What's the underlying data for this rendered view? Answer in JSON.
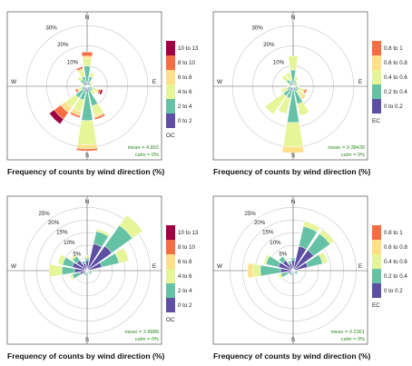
{
  "colors": {
    "bins": [
      "#5e4fa2",
      "#66c2a5",
      "#e6f598",
      "#fee08b",
      "#f46d43",
      "#9e0142"
    ],
    "stat_text": "#2e8b22",
    "ring": "#c8c8c8",
    "axis": "#555555"
  },
  "chart_data": [
    {
      "type": "wind-rose",
      "title": "Frequency of counts by wind direction (%)",
      "directions": [
        "N",
        "NNE",
        "NE",
        "ENE",
        "E",
        "ESE",
        "SE",
        "SSE",
        "S",
        "SSW",
        "SW",
        "WSW",
        "W",
        "WNW",
        "NW",
        "NNW"
      ],
      "compass_labels": [
        "N",
        "E",
        "S",
        "W"
      ],
      "ring_labels": [
        "10%",
        "20%",
        "30%"
      ],
      "ring_values": [
        10,
        20,
        30
      ],
      "legend_title": "OC",
      "legend_labels": [
        "0 to 2",
        "2 to 4",
        "4 to 6",
        "6 to 8",
        "8 to 10",
        "10 to 13"
      ],
      "stats": {
        "mean": "mean = 4.802",
        "calm": "calm = 0%"
      },
      "series": [
        {
          "name": "0 to 2",
          "values": [
            2,
            2,
            1,
            1,
            1,
            1,
            1,
            2,
            3,
            2,
            2,
            1,
            1,
            1,
            2,
            2
          ]
        },
        {
          "name": "2 to 4",
          "values": [
            8,
            3,
            1,
            1,
            1,
            2,
            2,
            8,
            14,
            5,
            5,
            2,
            1,
            1,
            2,
            3
          ]
        },
        {
          "name": "4 to 6",
          "values": [
            4,
            2,
            1,
            1,
            1,
            2,
            2,
            5,
            12,
            6,
            6,
            2,
            1,
            1,
            2,
            3
          ]
        },
        {
          "name": "6 to 8",
          "values": [
            1,
            0,
            0,
            0,
            0,
            1,
            0,
            1,
            2,
            2,
            3,
            0,
            0,
            0,
            0,
            1
          ]
        },
        {
          "name": "8 to 10",
          "values": [
            2,
            0,
            0,
            0,
            0,
            1,
            0,
            1,
            1,
            1,
            4,
            1,
            0,
            0,
            0,
            1
          ]
        },
        {
          "name": "10 to 13",
          "values": [
            0,
            0,
            0,
            0,
            0,
            1,
            0,
            0,
            0,
            0,
            3,
            0,
            0,
            0,
            0,
            0
          ]
        }
      ],
      "rmax": 35
    },
    {
      "type": "wind-rose",
      "title": "Frequency of counts by wind direction (%)",
      "directions": [
        "N",
        "NNE",
        "NE",
        "ENE",
        "E",
        "ESE",
        "SE",
        "SSE",
        "S",
        "SSW",
        "SW",
        "WSW",
        "W",
        "WNW",
        "NW",
        "NNW"
      ],
      "compass_labels": [
        "N",
        "E",
        "S",
        "W"
      ],
      "ring_labels": [
        "10%",
        "20%",
        "30%"
      ],
      "ring_values": [
        10,
        20,
        30
      ],
      "legend_title": "EC",
      "legend_labels": [
        "0 to 0.2",
        "0.2 to 0.4",
        "0.4 to 0.6",
        "0.6 to 0.8",
        "0.8 to 1"
      ],
      "stats": {
        "mean": "mean = 0.38439",
        "calm": "calm = 0%"
      },
      "series": [
        {
          "name": "0 to 0.2",
          "values": [
            2,
            1,
            1,
            1,
            1,
            1,
            1,
            2,
            2,
            2,
            2,
            1,
            1,
            1,
            2,
            1
          ]
        },
        {
          "name": "0.2 to 0.4",
          "values": [
            6,
            2,
            1,
            1,
            1,
            2,
            2,
            7,
            16,
            4,
            4,
            2,
            1,
            1,
            2,
            2
          ]
        },
        {
          "name": "0.4 to 0.6",
          "values": [
            7,
            2,
            1,
            1,
            1,
            2,
            3,
            6,
            12,
            8,
            11,
            3,
            1,
            1,
            3,
            4
          ]
        },
        {
          "name": "0.6 to 0.8",
          "values": [
            0,
            0,
            0,
            0,
            0,
            1,
            2,
            0,
            3,
            0,
            0,
            0,
            0,
            0,
            0,
            0
          ]
        },
        {
          "name": "0.8 to 1",
          "values": [
            0,
            0,
            0,
            0,
            0,
            1,
            0,
            0,
            0,
            0,
            0,
            0,
            0,
            0,
            0,
            0
          ]
        }
      ],
      "rmax": 35
    },
    {
      "type": "wind-rose",
      "title": "Frequency of counts by wind direction (%)",
      "directions": [
        "N",
        "NNE",
        "NE",
        "ENE",
        "E",
        "ESE",
        "SE",
        "SSE",
        "S",
        "SSW",
        "SW",
        "WSW",
        "W",
        "WNW",
        "NW",
        "NNW"
      ],
      "compass_labels": [
        "N",
        "E",
        "S",
        "W"
      ],
      "ring_labels": [
        "5%",
        "10%",
        "15%",
        "20%",
        "25%"
      ],
      "ring_values": [
        5,
        10,
        15,
        20,
        25
      ],
      "legend_title": "OC",
      "legend_labels": [
        "0 to 2",
        "2 to 4",
        "4 to 6",
        "6 to 8",
        "8 to 10",
        "10 to 13"
      ],
      "stats": {
        "mean": "mean = 2.8888",
        "calm": "calm = 0%"
      },
      "series": [
        {
          "name": "0 to 2",
          "values": [
            4,
            11,
            12,
            6,
            1,
            1,
            1,
            1,
            1,
            1,
            1,
            3,
            5,
            6,
            5,
            3
          ]
        },
        {
          "name": "2 to 4",
          "values": [
            1,
            5,
            10,
            7,
            1,
            1,
            1,
            0,
            0,
            1,
            1,
            3,
            5,
            4,
            2,
            1
          ]
        },
        {
          "name": "4 to 6",
          "values": [
            1,
            1,
            5,
            4,
            0,
            0,
            0,
            0,
            0,
            0,
            0,
            1,
            5,
            2,
            1,
            0
          ]
        },
        {
          "name": "6 to 8",
          "values": [
            0,
            0,
            0,
            0,
            0,
            0,
            0,
            0,
            0,
            0,
            0,
            0,
            0,
            0,
            0,
            0
          ]
        },
        {
          "name": "8 to 10",
          "values": [
            0,
            0,
            0,
            0,
            0,
            0,
            0,
            0,
            0,
            0,
            0,
            0,
            0,
            0,
            0,
            0
          ]
        },
        {
          "name": "10 to 13",
          "values": [
            0,
            0,
            0,
            0,
            0,
            0,
            0,
            0,
            0,
            0,
            0,
            0,
            0,
            0,
            0,
            0
          ]
        }
      ],
      "rmax": 28
    },
    {
      "type": "wind-rose",
      "title": "Frequency of counts by wind direction (%)",
      "directions": [
        "N",
        "NNE",
        "NE",
        "ENE",
        "E",
        "ESE",
        "SE",
        "SSE",
        "S",
        "SSW",
        "SW",
        "WSW",
        "W",
        "WNW",
        "NW",
        "NNW"
      ],
      "compass_labels": [
        "N",
        "E",
        "S",
        "W"
      ],
      "ring_labels": [
        "5%",
        "10%",
        "15%",
        "20%",
        "25%"
      ],
      "ring_values": [
        5,
        10,
        15,
        20,
        25
      ],
      "legend_title": "EC",
      "legend_labels": [
        "0 to 0.2",
        "0.2 to 0.4",
        "0.4 to 0.6",
        "0.6 to 0.8",
        "0.8 to 1"
      ],
      "stats": {
        "mean": "mean = 0.2361",
        "calm": "calm = 0%"
      },
      "series": [
        {
          "name": "0 to 0.2",
          "values": [
            4,
            10,
            10,
            6,
            1,
            1,
            1,
            1,
            1,
            1,
            1,
            2,
            5,
            6,
            5,
            3
          ]
        },
        {
          "name": "0.2 to 0.4",
          "values": [
            1,
            8,
            8,
            6,
            1,
            1,
            1,
            0,
            0,
            1,
            1,
            3,
            8,
            5,
            2,
            1
          ]
        },
        {
          "name": "0.4 to 0.6",
          "values": [
            0,
            2,
            2,
            2,
            0,
            0,
            0,
            0,
            0,
            0,
            0,
            1,
            3,
            1,
            0,
            0
          ]
        },
        {
          "name": "0.6 to 0.8",
          "values": [
            0,
            0,
            0,
            0,
            0,
            0,
            0,
            0,
            0,
            0,
            0,
            0,
            2,
            0,
            0,
            0
          ]
        },
        {
          "name": "0.8 to 1",
          "values": [
            0,
            0,
            0,
            0,
            0,
            0,
            0,
            0,
            0,
            0,
            0,
            0,
            0,
            0,
            0,
            0
          ]
        }
      ],
      "rmax": 28
    }
  ]
}
